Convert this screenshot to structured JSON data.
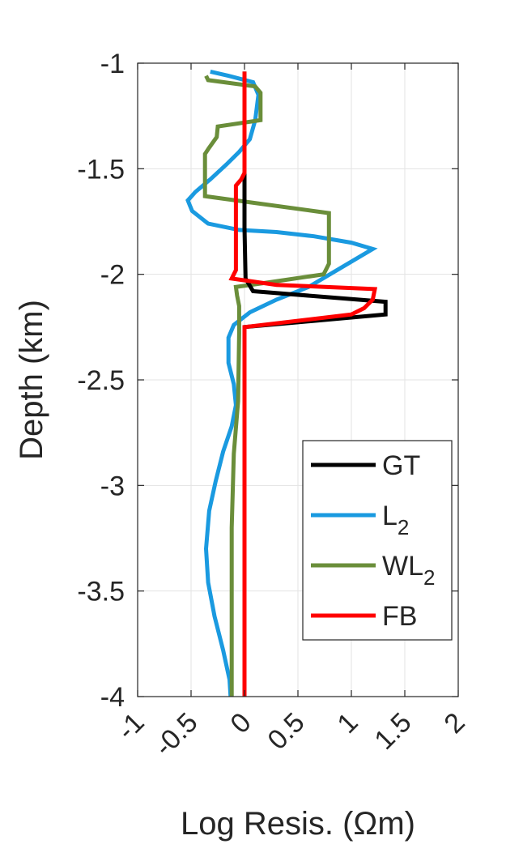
{
  "chart_data": {
    "type": "line",
    "title": "",
    "xlabel": "Log Resis. (Ωm)",
    "ylabel": "Depth (km)",
    "xlim": [
      -1,
      2
    ],
    "ylim": [
      -4,
      -1
    ],
    "xticks": [
      "-1",
      "-0.5",
      "0",
      "0.5",
      "1",
      "1.5",
      "2"
    ],
    "yticks": [
      "-1",
      "-1.5",
      "-2",
      "-2.5",
      "-3",
      "-3.5",
      "-4"
    ],
    "xtick_values": [
      -1,
      -0.5,
      0,
      0.5,
      1,
      1.5,
      2
    ],
    "ytick_values": [
      -1,
      -1.5,
      -2,
      -2.5,
      -3,
      -3.5,
      -4
    ],
    "grid": true,
    "legend_position": "lower-right",
    "series": [
      {
        "name": "GT",
        "color": "#000000",
        "points": [
          [
            0,
            -1.04
          ],
          [
            0,
            -1.78
          ],
          [
            0.01,
            -2.02
          ],
          [
            0.08,
            -2.08
          ],
          [
            1.32,
            -2.13
          ],
          [
            1.32,
            -2.19
          ],
          [
            0,
            -2.25
          ],
          [
            0,
            -4.0
          ]
        ]
      },
      {
        "name": "L",
        "sub": "2",
        "color": "#1a9ae0",
        "points": [
          [
            -0.32,
            -1.04
          ],
          [
            -0.15,
            -1.06
          ],
          [
            0.08,
            -1.09
          ],
          [
            0.13,
            -1.15
          ],
          [
            0.1,
            -1.27
          ],
          [
            0.05,
            -1.36
          ],
          [
            -0.05,
            -1.42
          ],
          [
            -0.17,
            -1.48
          ],
          [
            -0.32,
            -1.55
          ],
          [
            -0.46,
            -1.61
          ],
          [
            -0.53,
            -1.65
          ],
          [
            -0.49,
            -1.7
          ],
          [
            -0.34,
            -1.76
          ],
          [
            -0.05,
            -1.79
          ],
          [
            0.3,
            -1.8
          ],
          [
            0.65,
            -1.82
          ],
          [
            1.0,
            -1.85
          ],
          [
            1.2,
            -1.88
          ],
          [
            0.9,
            -1.97
          ],
          [
            0.6,
            -2.06
          ],
          [
            0.3,
            -2.12
          ],
          [
            0.05,
            -2.18
          ],
          [
            -0.1,
            -2.24
          ],
          [
            -0.15,
            -2.3
          ],
          [
            -0.15,
            -2.42
          ],
          [
            -0.1,
            -2.52
          ],
          [
            -0.08,
            -2.62
          ],
          [
            -0.12,
            -2.72
          ],
          [
            -0.2,
            -2.84
          ],
          [
            -0.27,
            -2.98
          ],
          [
            -0.33,
            -3.12
          ],
          [
            -0.36,
            -3.3
          ],
          [
            -0.34,
            -3.46
          ],
          [
            -0.28,
            -3.62
          ],
          [
            -0.2,
            -3.78
          ],
          [
            -0.14,
            -3.92
          ],
          [
            -0.13,
            -4.0
          ]
        ]
      },
      {
        "name": "WL",
        "sub": "2",
        "color": "#6a8e3a",
        "points": [
          [
            -0.36,
            -1.06
          ],
          [
            -0.34,
            -1.08
          ],
          [
            0.1,
            -1.11
          ],
          [
            0.15,
            -1.14
          ],
          [
            0.15,
            -1.27
          ],
          [
            -0.25,
            -1.3
          ],
          [
            -0.26,
            -1.35
          ],
          [
            -0.33,
            -1.4
          ],
          [
            -0.37,
            -1.43
          ],
          [
            -0.37,
            -1.63
          ],
          [
            0.79,
            -1.71
          ],
          [
            0.79,
            -1.95
          ],
          [
            0.74,
            -2.0
          ],
          [
            0.2,
            -2.04
          ],
          [
            -0.08,
            -2.06
          ],
          [
            -0.07,
            -2.1
          ],
          [
            -0.05,
            -2.15
          ],
          [
            -0.05,
            -2.28
          ],
          [
            -0.06,
            -2.6
          ],
          [
            -0.1,
            -2.85
          ],
          [
            -0.12,
            -3.2
          ],
          [
            -0.12,
            -4.0
          ]
        ]
      },
      {
        "name": "FB",
        "color": "#ff0000",
        "points": [
          [
            0,
            -1.04
          ],
          [
            0,
            -1.52
          ],
          [
            -0.03,
            -1.55
          ],
          [
            -0.08,
            -1.58
          ],
          [
            -0.08,
            -1.98
          ],
          [
            -0.12,
            -2.02
          ],
          [
            0.3,
            -2.05
          ],
          [
            1.22,
            -2.07
          ],
          [
            1.2,
            -2.12
          ],
          [
            1.12,
            -2.16
          ],
          [
            1.0,
            -2.19
          ],
          [
            0,
            -2.25
          ],
          [
            0,
            -4.0
          ]
        ]
      }
    ]
  }
}
